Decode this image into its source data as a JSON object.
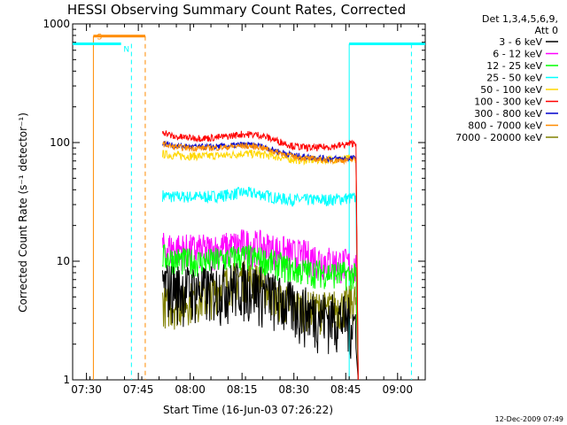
{
  "chart_data": {
    "type": "line",
    "title": "HESSI Observing Summary Count Rates, Corrected",
    "xlabel": "Start Time (16-Jun-03 07:26:22)",
    "ylabel": "Corrected Count Rate (s⁻¹ detector⁻¹)",
    "y_scale": "log",
    "ylim": [
      1,
      1000
    ],
    "xlim": [
      "07:26",
      "09:08"
    ],
    "x_ticks": [
      "07:30",
      "07:45",
      "08:00",
      "08:15",
      "08:30",
      "08:45",
      "09:00"
    ],
    "y_ticks": [
      "1",
      "10",
      "100",
      "1000"
    ],
    "legend_header": [
      "Det 1,3,4,5,6,9,",
      "Att 0"
    ],
    "legend_position": "right",
    "series": [
      {
        "name": "3 - 6 keV",
        "color": "#000000",
        "x": [
          "07:52",
          "07:55",
          "08:00",
          "08:05",
          "08:10",
          "08:15",
          "08:20",
          "08:25",
          "08:30",
          "08:35",
          "08:40",
          "08:45",
          "08:48"
        ],
        "y": [
          6.5,
          6.2,
          6.0,
          5.8,
          6.2,
          6.5,
          6.0,
          5.0,
          4.2,
          3.8,
          3.5,
          3.3,
          3.0
        ]
      },
      {
        "name": "6 - 12 keV",
        "color": "#ff00ff",
        "x": [
          "07:52",
          "07:55",
          "08:00",
          "08:05",
          "08:10",
          "08:15",
          "08:20",
          "08:25",
          "08:30",
          "08:35",
          "08:40",
          "08:45",
          "08:48"
        ],
        "y": [
          13,
          13,
          12.5,
          12.5,
          13,
          14,
          13.5,
          12.5,
          11.5,
          11,
          10,
          9.5,
          9
        ]
      },
      {
        "name": "12 - 25 keV",
        "color": "#00ff00",
        "x": [
          "07:52",
          "07:55",
          "08:00",
          "08:05",
          "08:10",
          "08:15",
          "08:20",
          "08:25",
          "08:30",
          "08:35",
          "08:40",
          "08:45",
          "08:48"
        ],
        "y": [
          11,
          10.5,
          10,
          10,
          10.5,
          11,
          10.5,
          9.5,
          8.5,
          8.2,
          8,
          7.8,
          7.5
        ]
      },
      {
        "name": "25 - 50 keV",
        "color": "#00ffff",
        "x": [
          "07:52",
          "07:55",
          "08:00",
          "08:05",
          "08:10",
          "08:15",
          "08:20",
          "08:25",
          "08:30",
          "08:35",
          "08:40",
          "08:45",
          "08:48"
        ],
        "y": [
          36,
          35,
          35,
          35,
          36,
          38,
          37,
          34,
          33,
          33,
          33,
          34,
          34
        ]
      },
      {
        "name": "50 - 100 keV",
        "color": "#ffd700",
        "x": [
          "07:52",
          "07:55",
          "08:00",
          "08:05",
          "08:10",
          "08:15",
          "08:20",
          "08:25",
          "08:30",
          "08:35",
          "08:40",
          "08:45",
          "08:48"
        ],
        "y": [
          80,
          78,
          77,
          77,
          78,
          81,
          80,
          76,
          72,
          71,
          72,
          73,
          73
        ]
      },
      {
        "name": "100 - 300 keV",
        "color": "#ff0000",
        "x": [
          "07:52",
          "07:55",
          "08:00",
          "08:05",
          "08:10",
          "08:15",
          "08:20",
          "08:25",
          "08:30",
          "08:35",
          "08:40",
          "08:45",
          "08:48"
        ],
        "y": [
          125,
          112,
          110,
          109,
          112,
          118,
          116,
          104,
          93,
          90,
          92,
          96,
          100
        ]
      },
      {
        "name": "300 - 800 keV",
        "color": "#0000cc",
        "x": [
          "07:52",
          "07:55",
          "08:00",
          "08:05",
          "08:10",
          "08:15",
          "08:20",
          "08:25",
          "08:30",
          "08:35",
          "08:40",
          "08:45",
          "08:48"
        ],
        "y": [
          100,
          94,
          92,
          92,
          93,
          96,
          94,
          85,
          78,
          75,
          73,
          73,
          74
        ]
      },
      {
        "name": "800 - 7000 keV",
        "color": "#ff8c00",
        "x": [
          "07:52",
          "07:55",
          "08:00",
          "08:05",
          "08:10",
          "08:15",
          "08:20",
          "08:25",
          "08:30",
          "08:35",
          "08:40",
          "08:45",
          "08:48"
        ],
        "y": [
          98,
          92,
          90,
          90,
          91,
          94,
          92,
          83,
          76,
          73,
          71,
          71,
          72
        ]
      },
      {
        "name": "7000 - 20000 keV",
        "color": "#808000",
        "x": [
          "07:52",
          "07:55",
          "08:00",
          "08:05",
          "08:10",
          "08:15",
          "08:20",
          "08:25",
          "08:30",
          "08:35",
          "08:40",
          "08:45",
          "08:48"
        ],
        "y": [
          4.5,
          4.3,
          4.8,
          5.0,
          6.5,
          7.5,
          6.8,
          5.0,
          4.2,
          4.0,
          4.0,
          4.3,
          4.8
        ]
      }
    ],
    "annotations": [
      {
        "text": "S",
        "color": "#ff8c00"
      },
      {
        "text": "N",
        "color": "#00ffff"
      }
    ]
  },
  "timestamp": "12-Dec-2009 07:49"
}
